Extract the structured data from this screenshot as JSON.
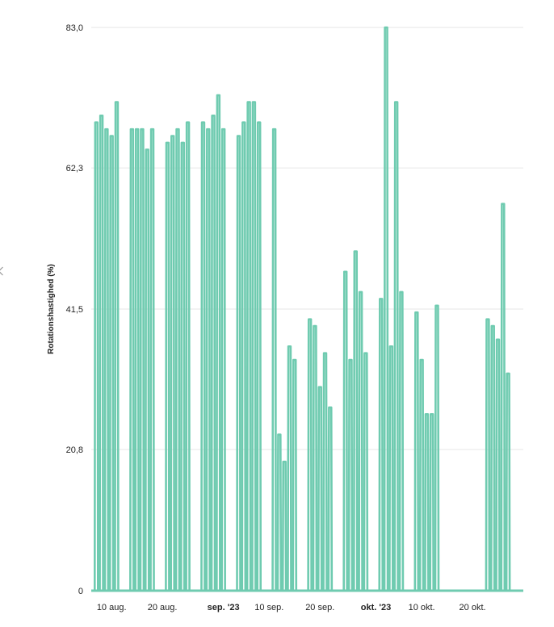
{
  "colors": {
    "series": "#6fcbb0",
    "grid": "#e6e6e6",
    "axis": "#6fcbb0",
    "text": "#222222"
  },
  "ui": {
    "collapse_icon": "chevron-left-icon"
  },
  "chart_data": {
    "type": "area",
    "title": "",
    "xlabel": "",
    "ylabel": "Rotationshastighed (%)",
    "ylim": [
      0,
      83
    ],
    "y_ticks": [
      {
        "value": 0,
        "label": "0"
      },
      {
        "value": 20.8,
        "label": "20,8"
      },
      {
        "value": 41.5,
        "label": "41,5"
      },
      {
        "value": 62.3,
        "label": "62,3"
      },
      {
        "value": 83,
        "label": "83,0"
      }
    ],
    "xlim": [
      "2023-08-06",
      "2023-10-30"
    ],
    "x_ticks": [
      {
        "date": "2023-08-10",
        "label": "10 aug.",
        "major": false
      },
      {
        "date": "2023-08-20",
        "label": "20 aug.",
        "major": false
      },
      {
        "date": "2023-09-01",
        "label": "sep. '23",
        "major": true
      },
      {
        "date": "2023-09-10",
        "label": "10 sep.",
        "major": false
      },
      {
        "date": "2023-09-20",
        "label": "20 sep.",
        "major": false
      },
      {
        "date": "2023-10-01",
        "label": "okt. '23",
        "major": true
      },
      {
        "date": "2023-10-10",
        "label": "10 okt.",
        "major": false
      },
      {
        "date": "2023-10-20",
        "label": "20 okt.",
        "major": false
      }
    ],
    "grid": true,
    "legend": "none",
    "x": [
      "2023-08-07",
      "2023-08-08",
      "2023-08-09",
      "2023-08-10",
      "2023-08-11",
      "2023-08-14",
      "2023-08-15",
      "2023-08-16",
      "2023-08-17",
      "2023-08-18",
      "2023-08-21",
      "2023-08-22",
      "2023-08-23",
      "2023-08-24",
      "2023-08-25",
      "2023-08-28",
      "2023-08-29",
      "2023-08-30",
      "2023-08-31",
      "2023-09-01",
      "2023-09-04",
      "2023-09-05",
      "2023-09-06",
      "2023-09-07",
      "2023-09-08",
      "2023-09-11",
      "2023-09-12",
      "2023-09-13",
      "2023-09-14",
      "2023-09-15",
      "2023-09-18",
      "2023-09-19",
      "2023-09-20",
      "2023-09-21",
      "2023-09-22",
      "2023-09-25",
      "2023-09-26",
      "2023-09-27",
      "2023-09-28",
      "2023-09-29",
      "2023-10-02",
      "2023-10-03",
      "2023-10-04",
      "2023-10-05",
      "2023-10-06",
      "2023-10-09",
      "2023-10-10",
      "2023-10-11",
      "2023-10-12",
      "2023-10-13",
      "2023-10-23",
      "2023-10-24",
      "2023-10-25",
      "2023-10-26",
      "2023-10-27"
    ],
    "values": [
      69,
      70,
      68,
      67,
      72,
      68,
      68,
      68,
      65,
      68,
      66,
      67,
      68,
      66,
      69,
      69,
      68,
      70,
      73,
      68,
      67,
      69,
      72,
      72,
      69,
      68,
      23,
      19,
      36,
      34,
      40,
      39,
      30,
      35,
      27,
      47,
      34,
      50,
      44,
      35,
      43,
      83,
      36,
      72,
      44,
      41,
      34,
      26,
      26,
      42,
      40,
      39,
      37,
      57,
      32
    ]
  }
}
